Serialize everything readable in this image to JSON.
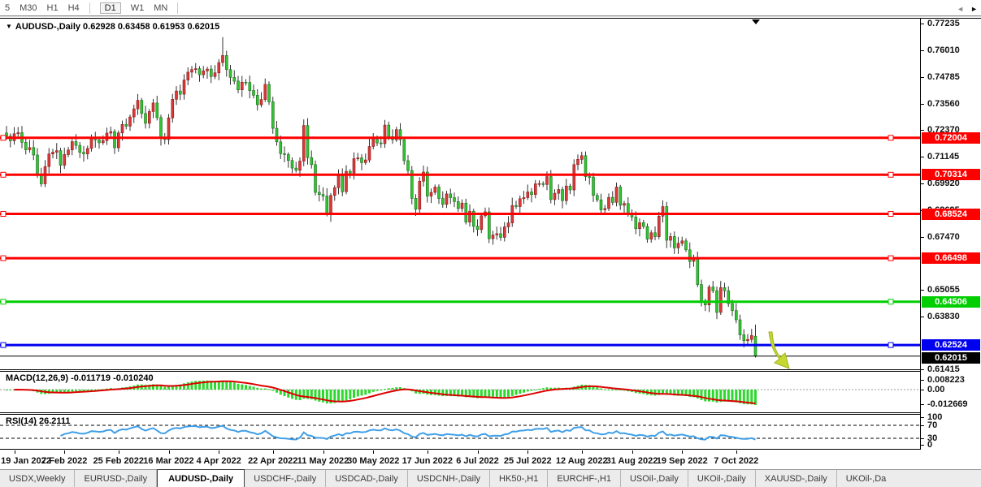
{
  "toolbar": {
    "items": [
      {
        "label": "5"
      },
      {
        "label": "M30"
      },
      {
        "label": "H1"
      },
      {
        "label": "H4"
      },
      {
        "sep": true
      },
      {
        "label": "D1",
        "active": true
      },
      {
        "label": "W1"
      },
      {
        "label": "MN"
      },
      {
        "sep": true
      }
    ]
  },
  "main_chart": {
    "title_line": "AUDUSD-,Daily  0.62928 0.63458 0.61953 0.62015",
    "marker_glyph": "▼",
    "shift_marker_glyph": "▼"
  },
  "macd_panel": {
    "label": "MACD(12,26,9) -0.011719 -0.010240",
    "scale_labels": [
      {
        "text": "0.008223",
        "value": 0.008223
      },
      {
        "text": "0.00",
        "value": 0
      },
      {
        "text": "-0.012669",
        "value": -0.012669
      }
    ]
  },
  "rsi_panel": {
    "label": "RSI(14) 26.2111",
    "levels": [
      {
        "text": "100",
        "value": 100,
        "dashed": false
      },
      {
        "text": "70",
        "value": 70,
        "dashed": true
      },
      {
        "text": "30",
        "value": 30,
        "dashed": true
      },
      {
        "text": "0",
        "value": 0,
        "dashed": false
      }
    ]
  },
  "price_axis": {
    "ticks": [
      0.77235,
      0.7601,
      0.74785,
      0.7356,
      0.7237,
      0.71145,
      0.6992,
      0.68695,
      0.6747,
      0.65055,
      0.6383,
      0.61415
    ]
  },
  "date_axis": {
    "ticks": [
      {
        "label": "19 Jan 2022",
        "index": 2
      },
      {
        "label": "7 Feb 2022",
        "index": 15
      },
      {
        "label": "25 Feb 2022",
        "index": 29
      },
      {
        "label": "16 Mar 2022",
        "index": 42
      },
      {
        "label": "4 Apr 2022",
        "index": 55
      },
      {
        "label": "22 Apr 2022",
        "index": 69
      },
      {
        "label": "11 May 2022",
        "index": 82
      },
      {
        "label": "30 May 2022",
        "index": 95
      },
      {
        "label": "17 Jun 2022",
        "index": 109
      },
      {
        "label": "6 Jul 2022",
        "index": 122
      },
      {
        "label": "25 Jul 2022",
        "index": 135
      },
      {
        "label": "12 Aug 2022",
        "index": 149
      },
      {
        "label": "31 Aug 2022",
        "index": 162
      },
      {
        "label": "19 Sep 2022",
        "index": 175
      },
      {
        "label": "7 Oct 2022",
        "index": 189
      }
    ]
  },
  "chart_data": {
    "type": "candlestick",
    "symbol": "AUDUSD-",
    "timeframe": "Daily",
    "last_candle": {
      "open": 0.62928,
      "high": 0.63458,
      "low": 0.61953,
      "close": 0.62015
    },
    "special_highs": {
      "56": 0.7661
    },
    "current_price": 0.62015,
    "hlines": [
      {
        "price": 0.72004,
        "color": "#FF0000"
      },
      {
        "price": 0.70314,
        "color": "#FF0000"
      },
      {
        "price": 0.68524,
        "color": "#FF0000"
      },
      {
        "price": 0.66498,
        "color": "#FF0000"
      },
      {
        "price": 0.64506,
        "color": "#00CE00"
      },
      {
        "price": 0.62524,
        "color": "#0000F0"
      }
    ],
    "indicators": [
      {
        "type": "MACD",
        "fast": 12,
        "slow": 26,
        "signal": 9,
        "current_main": -0.011719,
        "current_signal": -0.01024,
        "scale_max": 0.008223,
        "scale_min": -0.012669
      },
      {
        "type": "RSI",
        "period": 14,
        "current": 26.2111,
        "levels": [
          70,
          30
        ]
      }
    ],
    "colors": {
      "bull": "#D93A3A",
      "bull_stroke": "#8B1A1A",
      "bear": "#33C433",
      "bear_stroke": "#1A6E1A",
      "wick": "#333333",
      "macd_hist": "#2ED82E",
      "macd_signal": "#DD0000",
      "rsi": "#3F9FE8"
    },
    "dates": [
      "2022-01-17",
      "2022-01-18",
      "2022-01-19",
      "2022-01-20",
      "2022-01-21",
      "2022-01-24",
      "2022-01-25",
      "2022-01-26",
      "2022-01-27",
      "2022-01-28",
      "2022-01-31",
      "2022-02-01",
      "2022-02-02",
      "2022-02-03",
      "2022-02-04",
      "2022-02-07",
      "2022-02-08",
      "2022-02-09",
      "2022-02-10",
      "2022-02-11",
      "2022-02-14",
      "2022-02-15",
      "2022-02-16",
      "2022-02-17",
      "2022-02-18",
      "2022-02-21",
      "2022-02-22",
      "2022-02-23",
      "2022-02-24",
      "2022-02-25",
      "2022-02-28",
      "2022-03-01",
      "2022-03-02",
      "2022-03-03",
      "2022-03-04",
      "2022-03-07",
      "2022-03-08",
      "2022-03-09",
      "2022-03-10",
      "2022-03-11",
      "2022-03-14",
      "2022-03-15",
      "2022-03-16",
      "2022-03-17",
      "2022-03-18",
      "2022-03-21",
      "2022-03-22",
      "2022-03-23",
      "2022-03-24",
      "2022-03-25",
      "2022-03-28",
      "2022-03-29",
      "2022-03-30",
      "2022-03-31",
      "2022-04-01",
      "2022-04-04",
      "2022-04-05",
      "2022-04-06",
      "2022-04-07",
      "2022-04-08",
      "2022-04-11",
      "2022-04-12",
      "2022-04-13",
      "2022-04-14",
      "2022-04-15",
      "2022-04-18",
      "2022-04-19",
      "2022-04-20",
      "2022-04-21",
      "2022-04-22",
      "2022-04-25",
      "2022-04-26",
      "2022-04-27",
      "2022-04-28",
      "2022-04-29",
      "2022-05-02",
      "2022-05-03",
      "2022-05-04",
      "2022-05-05",
      "2022-05-06",
      "2022-05-09",
      "2022-05-10",
      "2022-05-11",
      "2022-05-12",
      "2022-05-13",
      "2022-05-16",
      "2022-05-17",
      "2022-05-18",
      "2022-05-19",
      "2022-05-20",
      "2022-05-23",
      "2022-05-24",
      "2022-05-25",
      "2022-05-26",
      "2022-05-27",
      "2022-05-30",
      "2022-05-31",
      "2022-06-01",
      "2022-06-02",
      "2022-06-03",
      "2022-06-06",
      "2022-06-07",
      "2022-06-08",
      "2022-06-09",
      "2022-06-10",
      "2022-06-13",
      "2022-06-14",
      "2022-06-15",
      "2022-06-16",
      "2022-06-17",
      "2022-06-20",
      "2022-06-21",
      "2022-06-22",
      "2022-06-23",
      "2022-06-24",
      "2022-06-27",
      "2022-06-28",
      "2022-06-29",
      "2022-06-30",
      "2022-07-01",
      "2022-07-04",
      "2022-07-05",
      "2022-07-06",
      "2022-07-07",
      "2022-07-08",
      "2022-07-11",
      "2022-07-12",
      "2022-07-13",
      "2022-07-14",
      "2022-07-15",
      "2022-07-18",
      "2022-07-19",
      "2022-07-20",
      "2022-07-21",
      "2022-07-22",
      "2022-07-25",
      "2022-07-26",
      "2022-07-27",
      "2022-07-28",
      "2022-07-29",
      "2022-08-01",
      "2022-08-02",
      "2022-08-03",
      "2022-08-04",
      "2022-08-05",
      "2022-08-08",
      "2022-08-09",
      "2022-08-10",
      "2022-08-11",
      "2022-08-12",
      "2022-08-15",
      "2022-08-16",
      "2022-08-17",
      "2022-08-18",
      "2022-08-19",
      "2022-08-22",
      "2022-08-23",
      "2022-08-24",
      "2022-08-25",
      "2022-08-26",
      "2022-08-29",
      "2022-08-30",
      "2022-08-31",
      "2022-09-01",
      "2022-09-02",
      "2022-09-05",
      "2022-09-06",
      "2022-09-07",
      "2022-09-08",
      "2022-09-09",
      "2022-09-12",
      "2022-09-13",
      "2022-09-14",
      "2022-09-15",
      "2022-09-16",
      "2022-09-19",
      "2022-09-20",
      "2022-09-21",
      "2022-09-22",
      "2022-09-23",
      "2022-09-26",
      "2022-09-27",
      "2022-09-28",
      "2022-09-29",
      "2022-09-30",
      "2022-10-03",
      "2022-10-04",
      "2022-10-05",
      "2022-10-06",
      "2022-10-07",
      "2022-10-10",
      "2022-10-11",
      "2022-10-12",
      "2022-10-13",
      "2022-10-14"
    ],
    "closes": [
      0.7208,
      0.7187,
      0.7219,
      0.7224,
      0.718,
      0.7146,
      0.7156,
      0.7122,
      0.7029,
      0.699,
      0.7069,
      0.7127,
      0.7135,
      0.7142,
      0.7075,
      0.7124,
      0.7145,
      0.7183,
      0.7166,
      0.7134,
      0.7127,
      0.7152,
      0.7196,
      0.7191,
      0.7178,
      0.7188,
      0.7222,
      0.7229,
      0.7155,
      0.7223,
      0.7262,
      0.7254,
      0.7296,
      0.7333,
      0.7372,
      0.7312,
      0.7267,
      0.7321,
      0.736,
      0.7293,
      0.7198,
      0.7193,
      0.7292,
      0.7377,
      0.7415,
      0.74,
      0.7465,
      0.7501,
      0.7513,
      0.7517,
      0.7489,
      0.7507,
      0.7515,
      0.7481,
      0.7498,
      0.7545,
      0.7577,
      0.7513,
      0.7477,
      0.746,
      0.742,
      0.7455,
      0.7454,
      0.7417,
      0.7395,
      0.7352,
      0.7376,
      0.7445,
      0.7365,
      0.7244,
      0.7182,
      0.7128,
      0.7124,
      0.7097,
      0.7062,
      0.7052,
      0.7094,
      0.7257,
      0.711,
      0.7078,
      0.6951,
      0.6941,
      0.6934,
      0.6852,
      0.6937,
      0.6972,
      0.7026,
      0.6954,
      0.7047,
      0.7039,
      0.7105,
      0.7109,
      0.7087,
      0.7099,
      0.7161,
      0.7196,
      0.7177,
      0.7174,
      0.7259,
      0.7206,
      0.7192,
      0.7238,
      0.7192,
      0.7096,
      0.7051,
      0.6924,
      0.6874,
      0.7002,
      0.7044,
      0.6934,
      0.6951,
      0.6975,
      0.6923,
      0.6896,
      0.6944,
      0.6927,
      0.6909,
      0.6877,
      0.6902,
      0.6815,
      0.6865,
      0.6796,
      0.6781,
      0.6844,
      0.6862,
      0.6739,
      0.6756,
      0.6762,
      0.6745,
      0.6793,
      0.6811,
      0.6891,
      0.6886,
      0.6922,
      0.6927,
      0.6953,
      0.6941,
      0.699,
      0.6991,
      0.6987,
      0.7023,
      0.6918,
      0.6947,
      0.6964,
      0.6913,
      0.698,
      0.6962,
      0.7078,
      0.7102,
      0.7119,
      0.7023,
      0.7021,
      0.6937,
      0.6917,
      0.6871,
      0.6877,
      0.6928,
      0.6905,
      0.6975,
      0.6892,
      0.69,
      0.6857,
      0.6838,
      0.6785,
      0.6812,
      0.6795,
      0.6737,
      0.6766,
      0.6748,
      0.6842,
      0.6886,
      0.6732,
      0.6749,
      0.6697,
      0.6718,
      0.6729,
      0.6688,
      0.6635,
      0.6647,
      0.6529,
      0.6453,
      0.6436,
      0.6518,
      0.6501,
      0.6402,
      0.6515,
      0.6501,
      0.6442,
      0.641,
      0.6368,
      0.6299,
      0.6272,
      0.6278,
      0.6296,
      0.62015
    ]
  },
  "annotations": {
    "arrow": {
      "shape": "down-right-arrow",
      "color": "#C5D932",
      "stroke": "#9FB221"
    }
  },
  "tabs": {
    "items": [
      {
        "label": "USDX,Weekly"
      },
      {
        "label": "EURUSD-,Daily"
      },
      {
        "label": "AUDUSD-,Daily",
        "active": true
      },
      {
        "label": "USDCHF-,Daily"
      },
      {
        "label": "USDCAD-,Daily"
      },
      {
        "label": "USDCNH-,Daily"
      },
      {
        "label": "HK50-,H1"
      },
      {
        "label": "EURCHF-,H1"
      },
      {
        "label": "USOil-,Daily"
      },
      {
        "label": "UKOil-,Daily"
      },
      {
        "label": "XAUUSD-,Daily"
      },
      {
        "label": "UKOil-,Da",
        "truncated": true
      }
    ],
    "scroll_left_glyph": "◄",
    "scroll_right_glyph": "►"
  }
}
